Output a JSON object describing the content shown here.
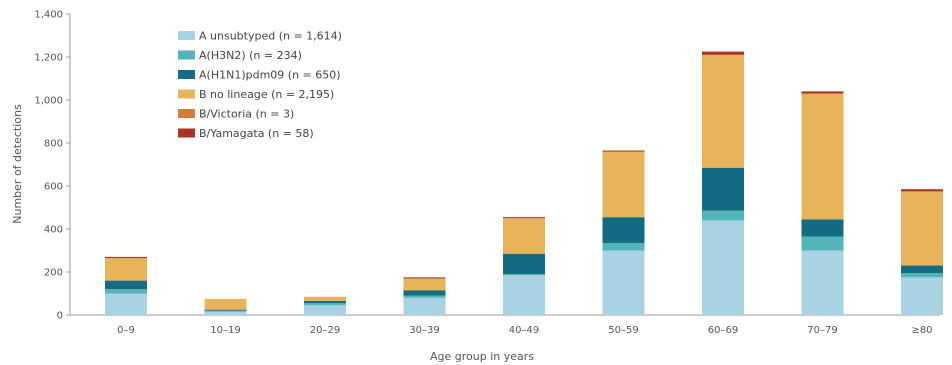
{
  "chart_data": {
    "type": "bar",
    "stacked": true,
    "xlabel": "Age group in years",
    "ylabel": "Number of detections",
    "ylim": [
      0,
      1400
    ],
    "yticks": [
      0,
      200,
      400,
      600,
      800,
      1000,
      1200,
      1400
    ],
    "ytick_labels": [
      "0",
      "200",
      "400",
      "600",
      "800",
      "1,000",
      "1,200",
      "1,400"
    ],
    "grid": false,
    "legend_position": "top-left",
    "categories": [
      "0–9",
      "10–19",
      "20–29",
      "30–39",
      "40–49",
      "50–59",
      "60–69",
      "70–79",
      "≥80"
    ],
    "series": [
      {
        "name": "A unsubtyped (n = 1,614)",
        "color": "#a9d3e3",
        "values": [
          100,
          15,
          45,
          80,
          185,
          300,
          440,
          300,
          175
        ]
      },
      {
        "name": "A(H3N2) (n = 234)",
        "color": "#52b6b8",
        "values": [
          20,
          5,
          10,
          10,
          5,
          35,
          45,
          65,
          20
        ]
      },
      {
        "name": "A(H1N1)pdm09 (n = 650)",
        "color": "#156b82",
        "values": [
          40,
          5,
          10,
          25,
          95,
          120,
          200,
          80,
          35
        ]
      },
      {
        "name": "B no lineage (n = 2,195)",
        "color": "#e8b45a",
        "values": [
          105,
          50,
          20,
          55,
          165,
          305,
          525,
          585,
          345
        ]
      },
      {
        "name": "B/Victoria (n = 3)",
        "color": "#d97b34",
        "values": [
          0,
          0,
          0,
          0,
          0,
          0,
          0,
          0,
          0
        ]
      },
      {
        "name": "B/Yamagata (n = 58)",
        "color": "#a83224",
        "values": [
          5,
          0,
          0,
          5,
          5,
          5,
          15,
          10,
          10
        ]
      }
    ]
  }
}
